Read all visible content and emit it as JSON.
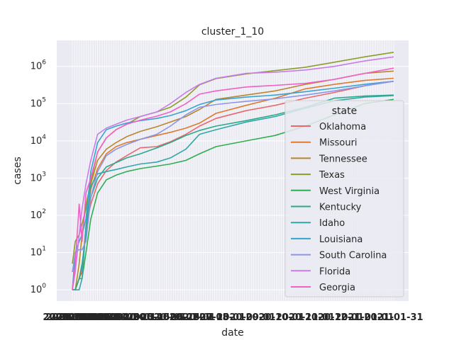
{
  "chart_data": {
    "type": "line",
    "title": "cluster_1_10",
    "xlabel": "date",
    "ylabel": "cases",
    "yscale": "log",
    "ylim": [
      0.5,
      5000000
    ],
    "yticks": [
      {
        "value": 1,
        "label": "10^0",
        "base": "10",
        "exp": "0"
      },
      {
        "value": 10,
        "label": "10^1",
        "base": "10",
        "exp": "1"
      },
      {
        "value": 100,
        "label": "10^2",
        "base": "10",
        "exp": "2"
      },
      {
        "value": 1000,
        "label": "10^3",
        "base": "10",
        "exp": "3"
      },
      {
        "value": 10000,
        "label": "10^4",
        "base": "10",
        "exp": "4"
      },
      {
        "value": 100000,
        "label": "10^5",
        "base": "10",
        "exp": "5"
      },
      {
        "value": 1000000,
        "label": "10^6",
        "base": "10",
        "exp": "6"
      }
    ],
    "x": [
      "2020-03-06",
      "2020-03-09",
      "2020-03-13",
      "2020-03-16",
      "2020-03-20",
      "2020-03-25",
      "2020-04-01",
      "2020-04-10",
      "2020-04-20",
      "2020-05-01",
      "2020-05-15",
      "2020-06-01",
      "2020-06-15",
      "2020-07-01",
      "2020-07-15",
      "2020-08-01",
      "2020-09-01",
      "2020-10-01",
      "2020-11-01",
      "2020-12-01",
      "2021-01-01",
      "2021-01-31"
    ],
    "x_tick_note": "x tick labels are overplotted dates and illegible",
    "grid": true,
    "legend": {
      "title": "state",
      "position": "right"
    },
    "series": [
      {
        "name": "Oklahoma",
        "color": "#e8686c",
        "values": [
          1,
          1,
          2,
          4,
          50,
          200,
          700,
          1600,
          2700,
          4000,
          6500,
          7000,
          9500,
          15000,
          25000,
          40000,
          65000,
          90000,
          140000,
          200000,
          300000,
          400000
        ]
      },
      {
        "name": "Missouri",
        "color": "#dd7a2f",
        "values": [
          1,
          1,
          2,
          3,
          50,
          500,
          1800,
          4500,
          7000,
          9000,
          11000,
          14000,
          17000,
          22000,
          30000,
          55000,
          90000,
          140000,
          250000,
          330000,
          420000,
          480000
        ]
      },
      {
        "name": "Tennessee",
        "color": "#b8862e",
        "values": [
          1,
          1,
          5,
          30,
          200,
          700,
          3000,
          6000,
          9000,
          13000,
          18000,
          24000,
          32000,
          45000,
          70000,
          130000,
          170000,
          220000,
          330000,
          450000,
          650000,
          750000
        ]
      },
      {
        "name": "Texas",
        "color": "#8e9b2d",
        "values": [
          5,
          20,
          30,
          60,
          150,
          800,
          5000,
          12000,
          20000,
          28000,
          45000,
          60000,
          80000,
          150000,
          320000,
          470000,
          630000,
          770000,
          950000,
          1300000,
          1800000,
          2400000
        ]
      },
      {
        "name": "West Virginia",
        "color": "#2fae50",
        "values": [
          1,
          1,
          2,
          2,
          10,
          80,
          400,
          900,
          1200,
          1500,
          1800,
          2100,
          2400,
          3000,
          4500,
          7000,
          10000,
          14000,
          25000,
          50000,
          100000,
          130000
        ]
      },
      {
        "name": "Kentucky",
        "color": "#2ca88a",
        "values": [
          1,
          1,
          2,
          5,
          30,
          300,
          1000,
          2000,
          2600,
          3500,
          4500,
          6500,
          9000,
          14000,
          19000,
          25000,
          35000,
          50000,
          80000,
          140000,
          160000,
          170000
        ]
      },
      {
        "name": "Idaho",
        "color": "#30a8a8",
        "values": [
          1,
          1,
          1,
          2,
          50,
          600,
          1300,
          1500,
          1700,
          2000,
          2400,
          2700,
          3500,
          6000,
          15000,
          20000,
          32000,
          45000,
          75000,
          120000,
          150000,
          165000
        ]
      },
      {
        "name": "Louisiana",
        "color": "#37a3d1",
        "values": [
          1,
          10,
          20,
          30,
          80,
          1500,
          9000,
          20000,
          25000,
          30000,
          35000,
          40000,
          48000,
          65000,
          95000,
          125000,
          150000,
          170000,
          210000,
          260000,
          330000,
          400000
        ]
      },
      {
        "name": "South Carolina",
        "color": "#8c96e6",
        "values": [
          3,
          10,
          12,
          12,
          20,
          300,
          1500,
          4000,
          6000,
          8000,
          11000,
          15000,
          25000,
          50000,
          80000,
          95000,
          115000,
          135000,
          170000,
          220000,
          300000,
          400000
        ]
      },
      {
        "name": "Florida",
        "color": "#c77ce8",
        "values": [
          1,
          3,
          30,
          150,
          700,
          3000,
          15000,
          22000,
          28000,
          36000,
          45000,
          60000,
          100000,
          200000,
          330000,
          480000,
          650000,
          700000,
          800000,
          1000000,
          1400000,
          1800000
        ]
      },
      {
        "name": "Georgia",
        "color": "#f260c5",
        "values": [
          1,
          5,
          200,
          20,
          400,
          1000,
          5000,
          12000,
          20000,
          28000,
          36000,
          46000,
          60000,
          100000,
          180000,
          220000,
          280000,
          310000,
          350000,
          450000,
          650000,
          900000
        ]
      }
    ]
  }
}
